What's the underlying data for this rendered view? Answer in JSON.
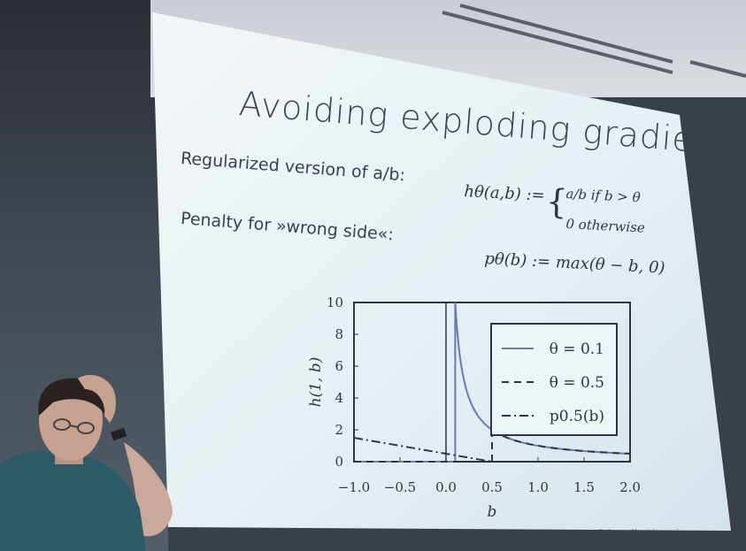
{
  "slide": {
    "title": "Avoiding exploding gradients",
    "bullet_regularized": "Regularized version of a/b:",
    "bullet_penalty": "Penalty for »wrong side«:",
    "formula_h_lhs": "hθ(a,b) :=",
    "formula_h_case1": "a/b  if b > θ",
    "formula_h_case2": "0   otherwise",
    "formula_p": "pθ(b) := max(θ − b, 0)",
    "citation": "Sahoo, Martius, in prep."
  },
  "chart_data": {
    "type": "line",
    "xlabel": "b",
    "ylabel": "h(1, b)",
    "xlim": [
      -1.0,
      2.0
    ],
    "ylim": [
      0,
      10
    ],
    "x_ticks": [
      "−1.0",
      "−0.5",
      "0.0",
      "0.5",
      "1.0",
      "1.5",
      "2.0"
    ],
    "y_ticks": [
      "0",
      "2",
      "4",
      "6",
      "8",
      "10"
    ],
    "legend": [
      {
        "label": "θ = 0.1",
        "style": "solid"
      },
      {
        "label": "θ = 0.5",
        "style": "dashed"
      },
      {
        "label": "p0.5(b)",
        "style": "dashdot"
      }
    ],
    "legend_position": "top-right",
    "series": [
      {
        "label": "θ = 0.1",
        "theta": 0.1,
        "style": "solid"
      },
      {
        "label": "θ = 0.5",
        "theta": 0.5,
        "style": "dashed"
      },
      {
        "label": "p0.5(b)",
        "theta": 0.5,
        "style": "dashdot"
      }
    ]
  },
  "colors": {
    "slide_bg": "#e9f2f6",
    "text": "#3b4150",
    "line_blue": "#6b78b8",
    "line_dark": "#2f3542"
  }
}
